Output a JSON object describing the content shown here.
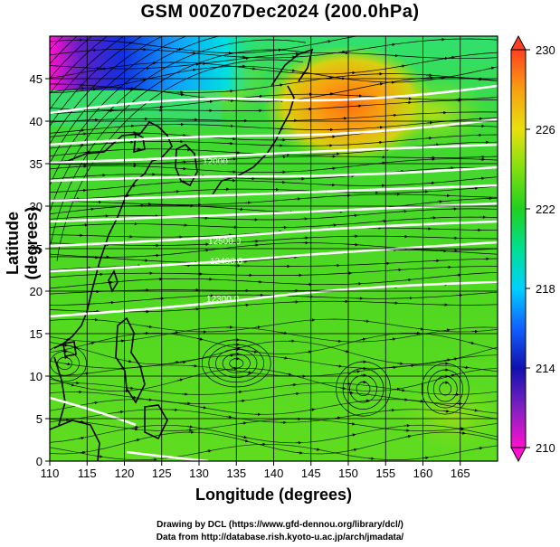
{
  "title": "GSM 00Z07Dec2024 (200.0hPa)",
  "xlabel": "Longitude (degrees)",
  "ylabel": "Latitude  (degrees)",
  "credits": [
    "Drawing by DCL (https://www.gfd-dennou.org/library/dcl/)",
    "Data from http://database.rish.kyoto-u.ac.jp/arch/jmadata/"
  ],
  "chart_data": {
    "type": "heatmap",
    "variable": "temperature with streamlines and geopotential height contours",
    "xlim": [
      110,
      170
    ],
    "ylim": [
      0,
      50
    ],
    "xticks": [
      110,
      115,
      120,
      125,
      130,
      135,
      140,
      145,
      150,
      155,
      160,
      165
    ],
    "yticks": [
      0,
      5,
      10,
      15,
      20,
      25,
      30,
      35,
      40,
      45
    ],
    "colorbar": {
      "range": [
        210,
        230
      ],
      "ticks": [
        210,
        214,
        218,
        222,
        226,
        230
      ],
      "colors": [
        "#ff00cc",
        "#2020c0",
        "#00ccff",
        "#00e060",
        "#40d020",
        "#80e010",
        "#f8b000",
        "#ff5020"
      ]
    },
    "contour_labels": [
      "12000",
      "12500.0",
      "12400.0",
      "12300.0"
    ],
    "warm_region": {
      "lon_range": [
        140,
        155
      ],
      "lat_range": [
        38,
        50
      ],
      "approx_value": 227
    },
    "cold_region": {
      "lon_range": [
        110,
        125
      ],
      "lat_range": [
        45,
        50
      ],
      "approx_value": 211
    }
  }
}
